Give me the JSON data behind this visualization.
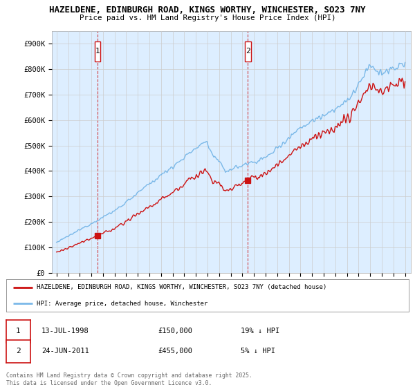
{
  "title_line1": "HAZELDENE, EDINBURGH ROAD, KINGS WORTHY, WINCHESTER, SO23 7NY",
  "title_line2": "Price paid vs. HM Land Registry's House Price Index (HPI)",
  "ylim": [
    0,
    950000
  ],
  "yticks": [
    0,
    100000,
    200000,
    300000,
    400000,
    500000,
    600000,
    700000,
    800000,
    900000
  ],
  "ytick_labels": [
    "£0",
    "£100K",
    "£200K",
    "£300K",
    "£400K",
    "£500K",
    "£600K",
    "£700K",
    "£800K",
    "£900K"
  ],
  "hpi_color": "#7ab8e8",
  "price_color": "#cc1111",
  "shade_color": "#ddeeff",
  "marker1_year": 1998.53,
  "marker1_price": 150000,
  "marker2_year": 2011.47,
  "marker2_price": 455000,
  "legend_line1": "HAZELDENE, EDINBURGH ROAD, KINGS WORTHY, WINCHESTER, SO23 7NY (detached house)",
  "legend_line2": "HPI: Average price, detached house, Winchester",
  "table_row1": [
    "1",
    "13-JUL-1998",
    "£150,000",
    "19% ↓ HPI"
  ],
  "table_row2": [
    "2",
    "24-JUN-2011",
    "£455,000",
    "5% ↓ HPI"
  ],
  "footer": "Contains HM Land Registry data © Crown copyright and database right 2025.\nThis data is licensed under the Open Government Licence v3.0.",
  "background_color": "#ffffff",
  "plot_bg_color": "#ddeeff",
  "grid_color": "#cccccc"
}
